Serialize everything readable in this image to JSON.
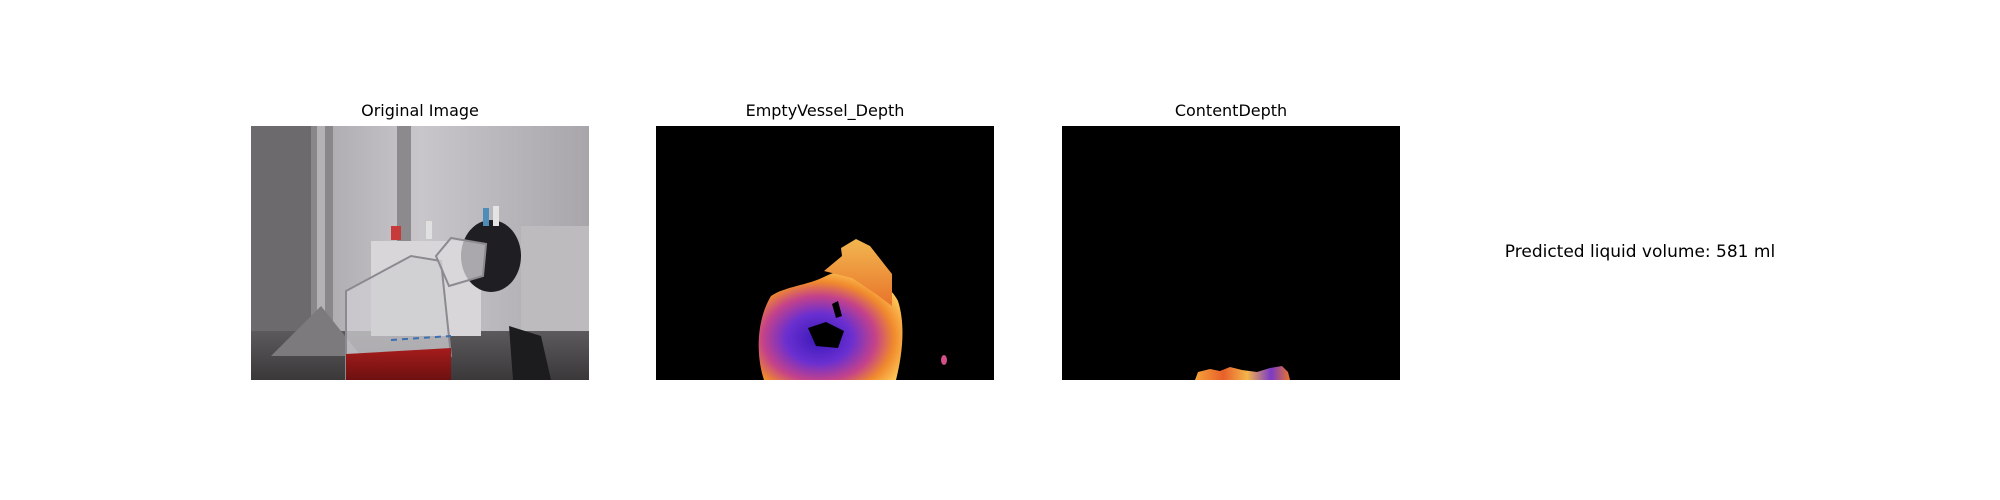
{
  "panels": [
    {
      "title": "Original Image"
    },
    {
      "title": "EmptyVessel_Depth"
    },
    {
      "title": "ContentDepth"
    }
  ],
  "result": {
    "text": "Predicted liquid volume: 581 ml"
  },
  "colors": {
    "background": "#ffffff",
    "depth_background": "#000000",
    "depth_colormap": [
      "#2b0d8f",
      "#6a2fd0",
      "#b0389a",
      "#e8602a",
      "#f7a23a",
      "#ffd97a"
    ]
  }
}
